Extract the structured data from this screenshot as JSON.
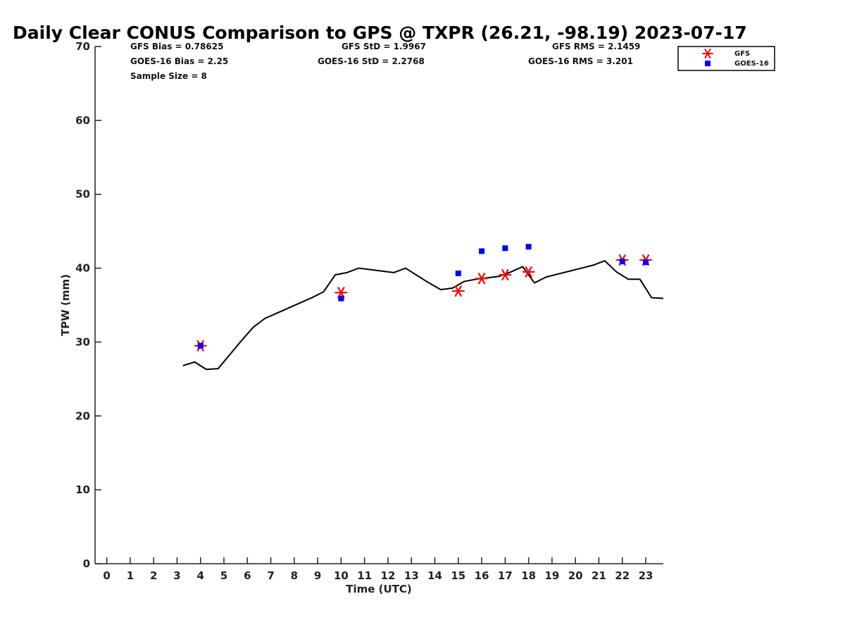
{
  "chart_data": {
    "type": "scatter",
    "title": "Daily Clear CONUS Comparison to GPS @ TXPR (26.21, -98.19) 2023-07-17",
    "xlabel": "Time (UTC)",
    "ylabel": "TPW (mm)",
    "xlim": [
      -0.5,
      23.75
    ],
    "ylim": [
      0,
      70
    ],
    "xticks": [
      0,
      1,
      2,
      3,
      4,
      5,
      6,
      7,
      8,
      9,
      10,
      11,
      12,
      13,
      14,
      15,
      16,
      17,
      18,
      19,
      20,
      21,
      22,
      23
    ],
    "yticks": [
      0,
      10,
      20,
      30,
      40,
      50,
      60,
      70
    ],
    "grid": false,
    "legend_position": "top-right",
    "stats": {
      "gfs_bias": "GFS Bias = 0.78625",
      "goes_bias": "GOES-16 Bias = 2.25",
      "sample_size": "Sample Size = 8",
      "gfs_std": "GFS StD = 1.9967",
      "goes_std": "GOES-16 StD = 2.2768",
      "gfs_rms": "GFS RMS = 2.1459",
      "goes_rms": "GOES-16 RMS = 3.201"
    },
    "series": [
      {
        "kind": "line",
        "color": "#000000",
        "x": [
          3.25,
          3.75,
          4.25,
          4.75,
          5.25,
          5.75,
          6.25,
          6.75,
          7.25,
          7.75,
          8.25,
          8.75,
          9.25,
          9.75,
          10.25,
          10.75,
          11.25,
          11.75,
          12.25,
          12.75,
          13.25,
          13.75,
          14.25,
          14.75,
          15.25,
          15.75,
          16.25,
          16.75,
          17.25,
          17.75,
          18.25,
          18.75,
          19.25,
          19.75,
          20.25,
          20.75,
          21.25,
          21.75,
          22.25,
          22.75,
          23.25,
          23.75
        ],
        "values": [
          26.8,
          27.3,
          26.3,
          26.4,
          28.3,
          30.2,
          32.0,
          33.2,
          33.9,
          34.6,
          35.3,
          36.0,
          36.8,
          39.1,
          39.4,
          40.0,
          39.8,
          39.6,
          39.4,
          40.0,
          39.0,
          38.0,
          37.1,
          37.3,
          38.2,
          38.5,
          38.7,
          38.9,
          39.5,
          40.2,
          38.0,
          38.8,
          39.2,
          39.6,
          40.0,
          40.4,
          41.0,
          39.5,
          38.5,
          38.5,
          36.0,
          35.9
        ]
      },
      {
        "name": "GFS",
        "kind": "scatter",
        "marker": "asterisk",
        "color": "#ff0000",
        "x": [
          4,
          10,
          15,
          16,
          17,
          18,
          22,
          23
        ],
        "values": [
          29.5,
          36.7,
          36.9,
          38.6,
          39.1,
          39.5,
          41.1,
          41.1
        ]
      },
      {
        "name": "GOES-16",
        "kind": "scatter",
        "marker": "square",
        "color": "#0000ff",
        "x": [
          4,
          10,
          15,
          16,
          17,
          18,
          22,
          23
        ],
        "values": [
          29.5,
          35.9,
          39.3,
          42.3,
          42.7,
          42.9,
          40.9,
          40.8
        ]
      }
    ]
  }
}
